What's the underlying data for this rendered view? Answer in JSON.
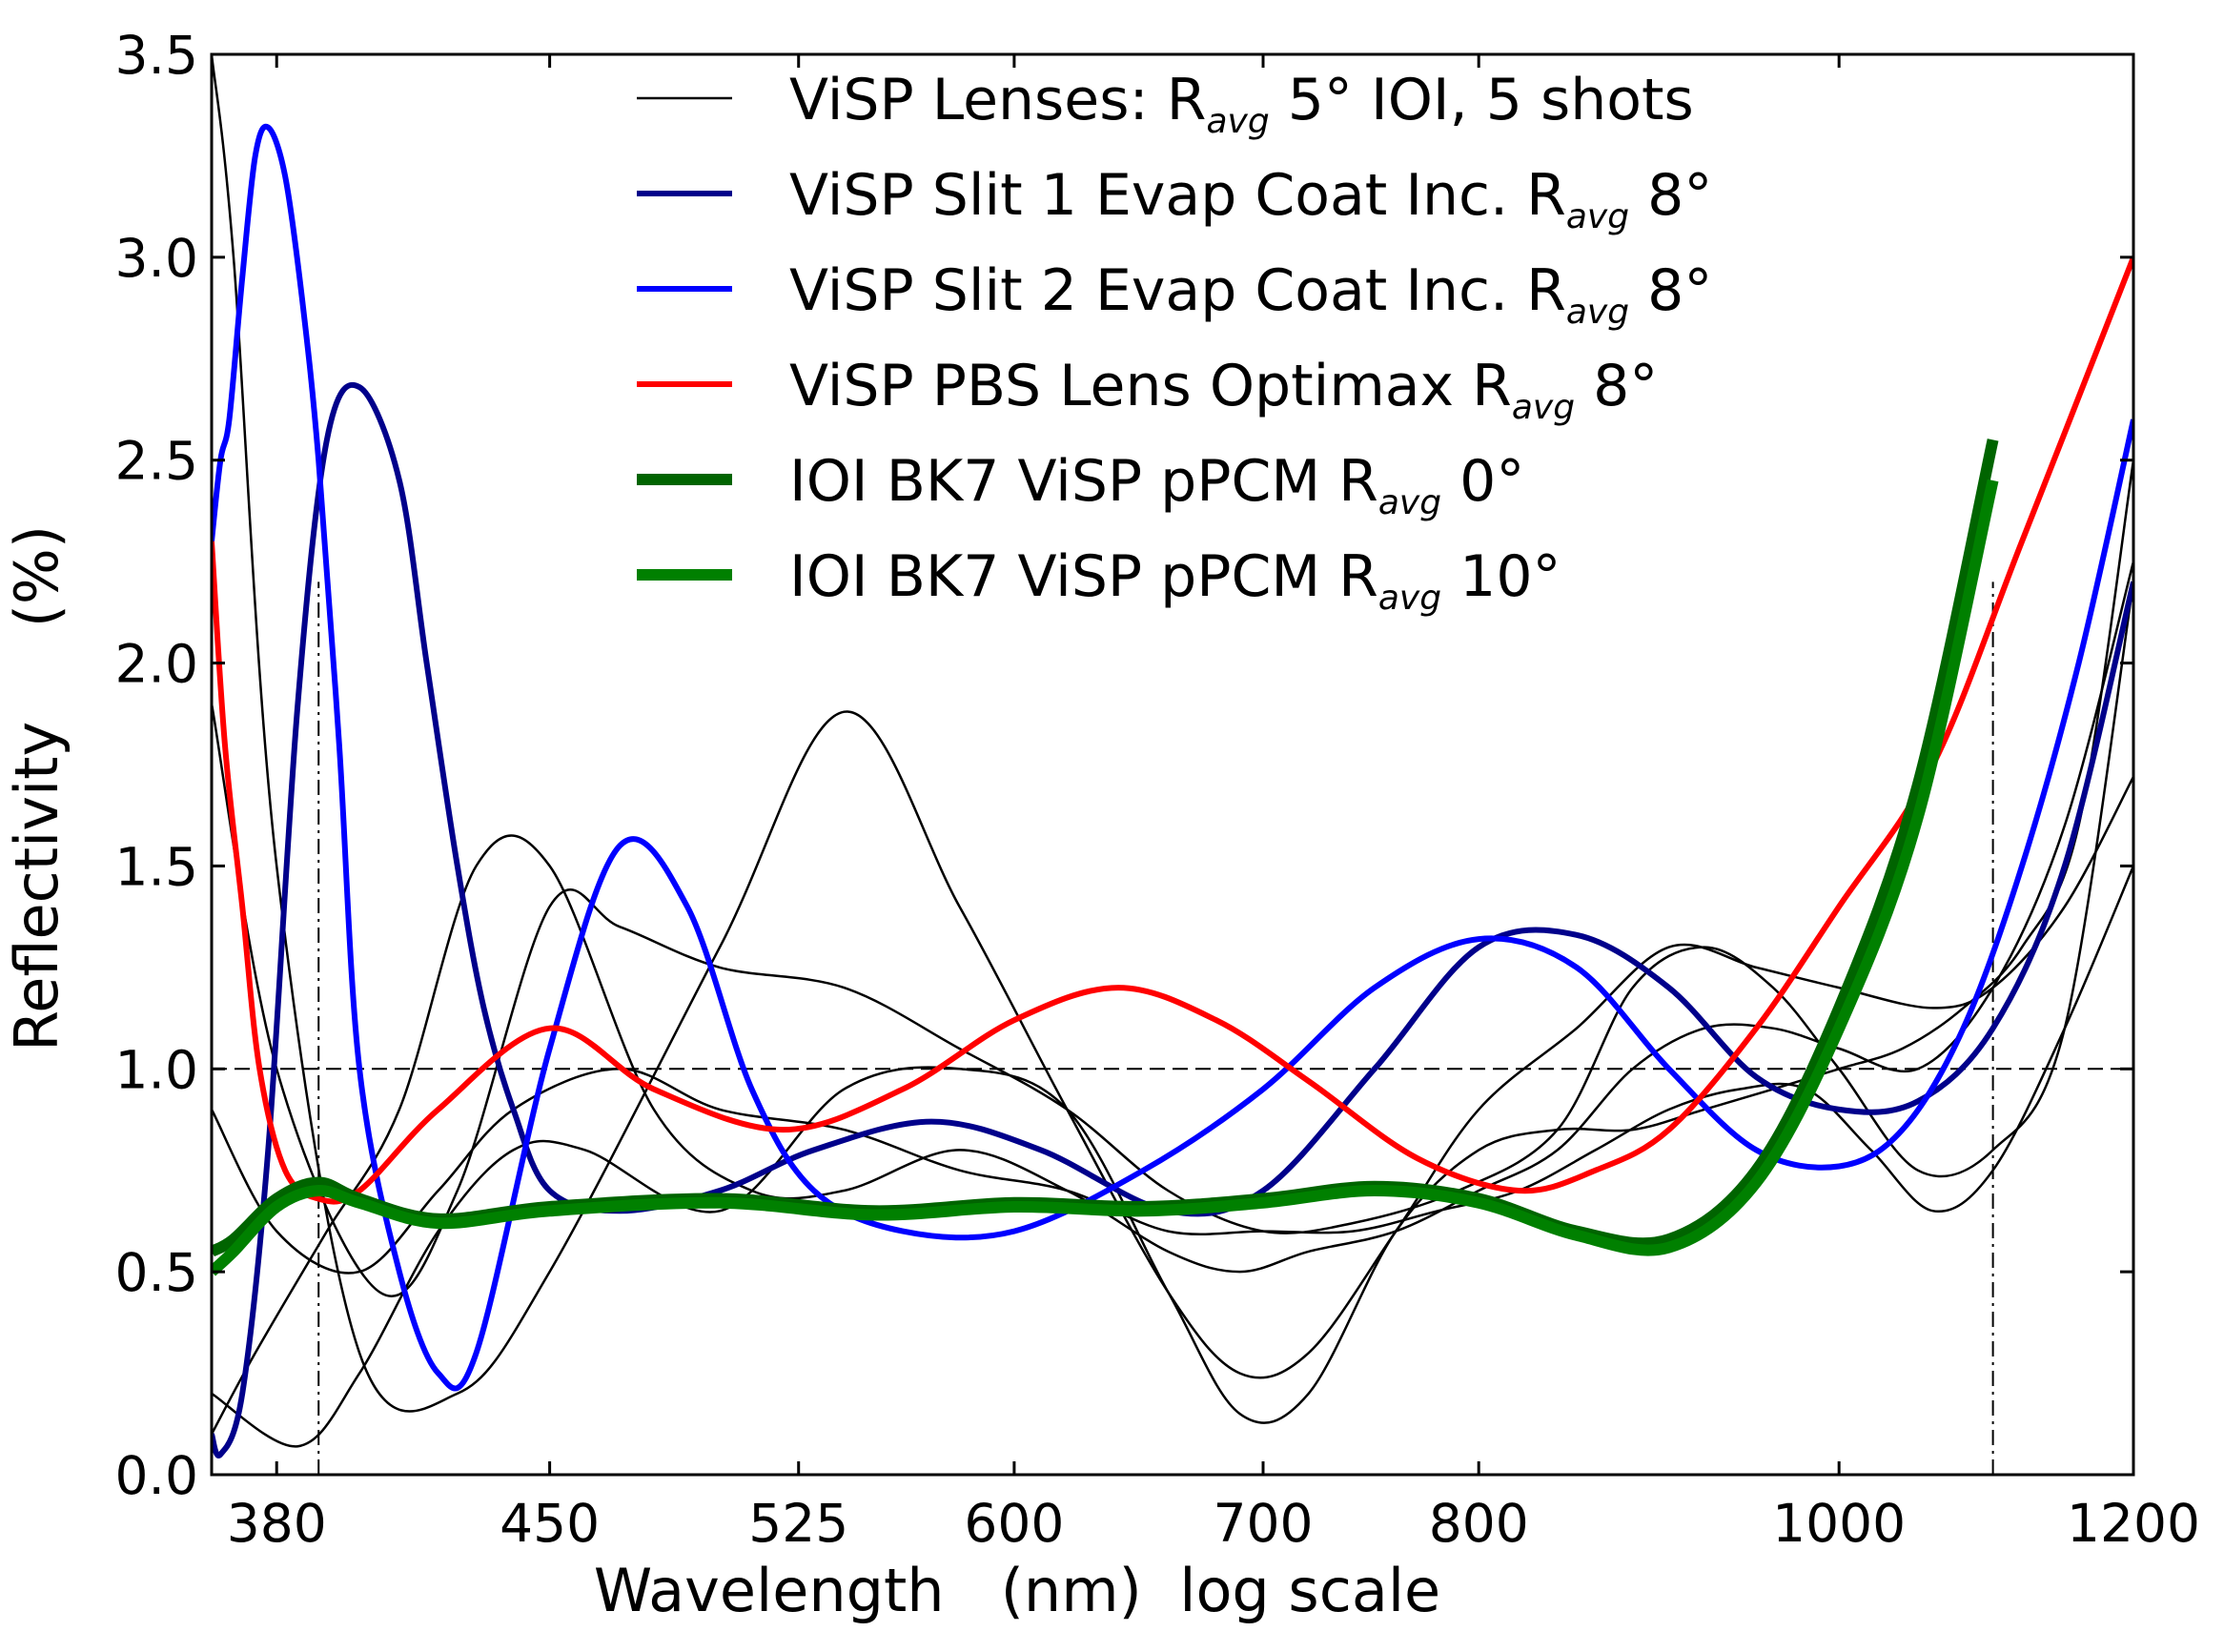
{
  "chart_data": {
    "type": "line",
    "xlabel": "Wavelength   (nm)  log scale",
    "ylabel": "Reflectivity     (%)",
    "x_scale": "log",
    "xlim": [
      365,
      1200
    ],
    "ylim": [
      0.0,
      3.5
    ],
    "x_ticks": [
      380,
      450,
      525,
      600,
      700,
      800,
      1000,
      1200
    ],
    "y_ticks": [
      0.0,
      0.5,
      1.0,
      1.5,
      2.0,
      2.5,
      3.0,
      3.5
    ],
    "x_tick_labels": [
      "380",
      "450",
      "525",
      "600",
      "700",
      "800",
      "1000",
      "1200"
    ],
    "y_tick_labels": [
      "0.0",
      "0.5",
      "1.0",
      "1.5",
      "2.0",
      "2.5",
      "3.0",
      "3.5"
    ],
    "grid": false,
    "legend_position": "top-center",
    "reference_lines": {
      "horizontal_y": 1.0,
      "vertical_x": [
        390,
        1100
      ]
    },
    "legend": [
      {
        "id": "lenses",
        "label": "ViSP Lenses: R",
        "sub": "avg",
        "suffix": " 5° IOI, 5 shots",
        "color": "#000000",
        "width": 2.5
      },
      {
        "id": "slit1",
        "label": "ViSP Slit 1 Evap Coat Inc. R",
        "sub": "avg",
        "suffix": "  8°",
        "color": "#00008b",
        "width": 6
      },
      {
        "id": "slit2",
        "label": "ViSP Slit 2 Evap Coat Inc. R",
        "sub": "avg",
        "suffix": "  8°",
        "color": "#0000ff",
        "width": 6
      },
      {
        "id": "pbs",
        "label": "ViSP PBS Lens Optimax R",
        "sub": "avg",
        "suffix": "  8°",
        "color": "#ff0000",
        "width": 6
      },
      {
        "id": "ioi0",
        "label": "IOI BK7 ViSP pPCM R",
        "sub": "avg",
        "suffix": "  0°",
        "color": "#006400",
        "width": 12
      },
      {
        "id": "ioi10",
        "label": "IOI BK7 ViSP pPCM R",
        "sub": "avg",
        "suffix": " 10°",
        "color": "#008000",
        "width": 12
      }
    ],
    "series": [
      {
        "id": "lenses-1",
        "color": "#000000",
        "width": 2.5,
        "x": [
          365,
          370,
          380,
          400,
          425,
          450,
          500,
          540,
          580,
          620,
          660,
          690,
          720,
          760,
          800,
          850,
          900,
          950,
          1000,
          1060,
          1100,
          1150,
          1200
        ],
        "y": [
          3.5,
          3.0,
          1.5,
          0.3,
          0.2,
          0.5,
          1.3,
          1.88,
          1.4,
          0.9,
          0.45,
          0.25,
          0.3,
          0.6,
          0.9,
          1.1,
          1.3,
          1.25,
          1.2,
          1.15,
          1.2,
          1.4,
          1.72
        ]
      },
      {
        "id": "lenses-2",
        "color": "#000000",
        "width": 2.5,
        "x": [
          365,
          380,
          405,
          425,
          450,
          470,
          500,
          540,
          580,
          620,
          660,
          700,
          740,
          790,
          840,
          880,
          920,
          960,
          1000,
          1050,
          1100,
          1150,
          1200
        ],
        "y": [
          1.9,
          1.0,
          0.45,
          0.7,
          1.4,
          1.35,
          1.25,
          1.2,
          1.05,
          0.9,
          0.7,
          0.6,
          0.62,
          0.7,
          0.85,
          1.2,
          1.3,
          1.2,
          1.0,
          0.75,
          0.8,
          1.1,
          2.2
        ]
      },
      {
        "id": "lenses-3",
        "color": "#000000",
        "width": 2.5,
        "x": [
          365,
          375,
          392,
          410,
          430,
          450,
          480,
          510,
          540,
          580,
          620,
          660,
          690,
          720,
          760,
          800,
          840,
          880,
          920,
          960,
          1000,
          1050,
          1100,
          1150,
          1200
        ],
        "y": [
          0.1,
          0.3,
          0.6,
          0.9,
          1.5,
          1.5,
          0.9,
          0.7,
          0.7,
          0.8,
          0.7,
          0.55,
          0.5,
          0.55,
          0.6,
          0.7,
          0.8,
          1.0,
          1.1,
          1.1,
          1.05,
          1.0,
          1.2,
          1.6,
          2.25
        ]
      },
      {
        "id": "lenses-4",
        "color": "#000000",
        "width": 2.5,
        "x": [
          365,
          385,
          400,
          420,
          440,
          460,
          500,
          540,
          580,
          620,
          660,
          690,
          720,
          760,
          800,
          840,
          880,
          920,
          960,
          1000,
          1040,
          1080,
          1120,
          1160,
          1200
        ],
        "y": [
          0.2,
          0.07,
          0.25,
          0.6,
          0.8,
          0.8,
          0.65,
          0.95,
          1.0,
          0.9,
          0.45,
          0.15,
          0.2,
          0.6,
          0.8,
          0.85,
          0.85,
          0.9,
          0.95,
          1.0,
          1.05,
          1.15,
          1.3,
          1.6,
          2.5
        ]
      },
      {
        "id": "lenses-5",
        "color": "#000000",
        "width": 2.5,
        "x": [
          365,
          380,
          400,
          420,
          440,
          470,
          500,
          540,
          580,
          620,
          660,
          700,
          740,
          780,
          820,
          860,
          900,
          940,
          980,
          1020,
          1060,
          1100,
          1150,
          1200
        ],
        "y": [
          0.9,
          0.6,
          0.5,
          0.7,
          0.9,
          1.0,
          0.9,
          0.85,
          0.75,
          0.7,
          0.6,
          0.6,
          0.6,
          0.65,
          0.7,
          0.8,
          0.9,
          0.95,
          0.95,
          0.8,
          0.65,
          0.75,
          1.1,
          1.5
        ]
      },
      {
        "id": "slit1",
        "color": "#00008b",
        "width": 6,
        "x": [
          365,
          367,
          372,
          378,
          385,
          392,
          400,
          410,
          417,
          425,
          432,
          440,
          450,
          470,
          500,
          530,
          570,
          610,
          660,
          700,
          750,
          800,
          850,
          900,
          950,
          1000,
          1050,
          1100,
          1150,
          1200
        ],
        "y": [
          0.1,
          0.05,
          0.2,
          0.8,
          1.9,
          2.55,
          2.68,
          2.45,
          2.0,
          1.5,
          1.15,
          0.9,
          0.7,
          0.65,
          0.7,
          0.8,
          0.87,
          0.8,
          0.65,
          0.7,
          1.0,
          1.3,
          1.33,
          1.2,
          0.98,
          0.9,
          0.92,
          1.1,
          1.5,
          2.2
        ]
      },
      {
        "id": "slit2",
        "color": "#0000ff",
        "width": 6,
        "x": [
          365,
          367,
          369,
          372,
          375,
          378,
          382,
          386,
          390,
          395,
          400,
          410,
          420,
          430,
          450,
          470,
          490,
          510,
          530,
          560,
          600,
          650,
          700,
          750,
          800,
          850,
          900,
          950,
          1000,
          1040,
          1080,
          1120,
          1160,
          1200
        ],
        "y": [
          2.3,
          2.5,
          2.6,
          2.95,
          3.25,
          3.32,
          3.2,
          2.9,
          2.5,
          1.8,
          1.0,
          0.5,
          0.25,
          0.3,
          1.05,
          1.55,
          1.4,
          0.95,
          0.7,
          0.6,
          0.6,
          0.75,
          0.95,
          1.2,
          1.32,
          1.25,
          1.0,
          0.8,
          0.76,
          0.85,
          1.1,
          1.5,
          2.0,
          2.6
        ]
      },
      {
        "id": "pbs",
        "color": "#ff0000",
        "width": 6,
        "x": [
          365,
          368,
          372,
          376,
          382,
          390,
          400,
          420,
          450,
          480,
          520,
          560,
          600,
          640,
          680,
          720,
          770,
          820,
          860,
          900,
          950,
          1000,
          1060,
          1120,
          1200
        ],
        "y": [
          2.3,
          1.8,
          1.4,
          1.0,
          0.75,
          0.68,
          0.7,
          0.9,
          1.1,
          0.95,
          0.85,
          0.95,
          1.12,
          1.2,
          1.12,
          0.97,
          0.78,
          0.7,
          0.75,
          0.85,
          1.1,
          1.4,
          1.75,
          2.3,
          3.0
        ]
      },
      {
        "id": "ioi0",
        "color": "#006400",
        "width": 12,
        "x": [
          365,
          370,
          380,
          390,
          400,
          420,
          450,
          500,
          550,
          600,
          650,
          700,
          750,
          800,
          850,
          900,
          950,
          1000,
          1050,
          1100
        ],
        "y": [
          0.55,
          0.58,
          0.68,
          0.72,
          0.68,
          0.63,
          0.66,
          0.68,
          0.65,
          0.67,
          0.66,
          0.68,
          0.71,
          0.68,
          0.6,
          0.58,
          0.75,
          1.15,
          1.7,
          2.55
        ]
      },
      {
        "id": "ioi10",
        "color": "#008000",
        "width": 12,
        "x": [
          365,
          370,
          380,
          390,
          400,
          420,
          450,
          500,
          550,
          600,
          650,
          700,
          750,
          800,
          850,
          900,
          950,
          1000,
          1050,
          1100
        ],
        "y": [
          0.5,
          0.55,
          0.66,
          0.7,
          0.67,
          0.62,
          0.65,
          0.67,
          0.64,
          0.66,
          0.65,
          0.67,
          0.7,
          0.67,
          0.59,
          0.56,
          0.72,
          1.1,
          1.62,
          2.45
        ]
      }
    ]
  }
}
